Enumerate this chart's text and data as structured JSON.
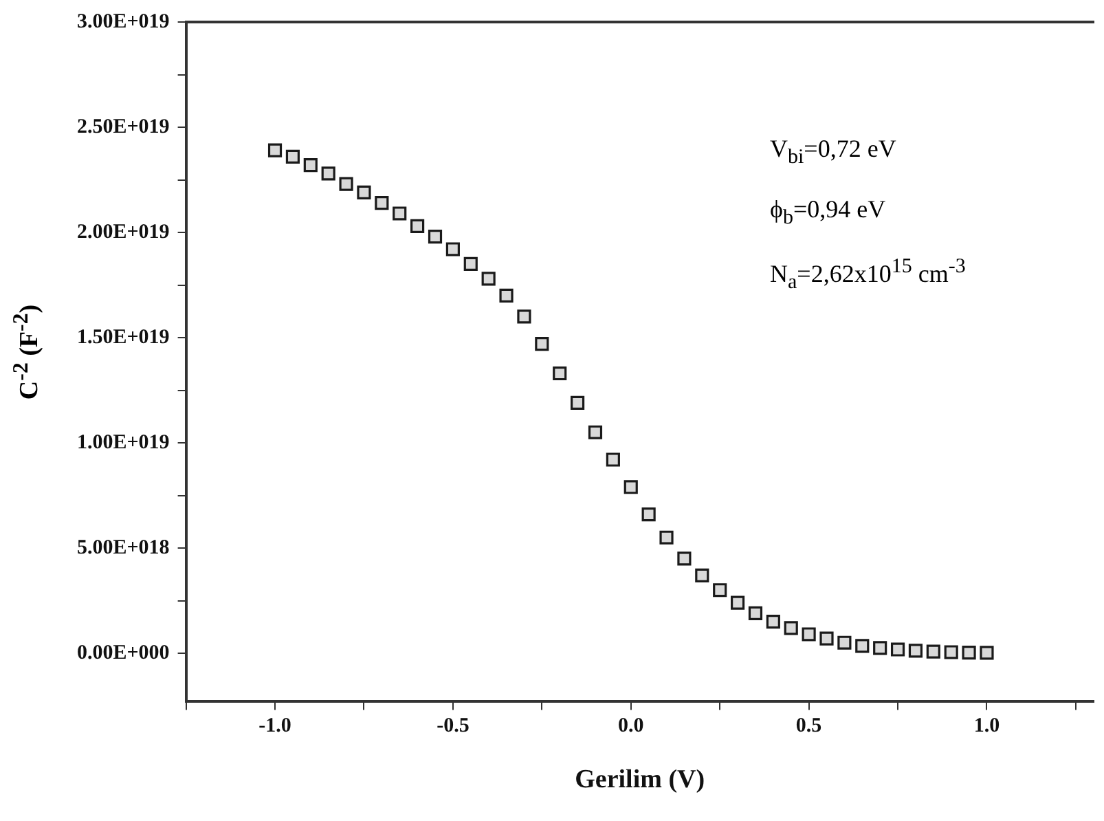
{
  "chart_data": {
    "type": "scatter",
    "xlabel": "Gerilim (V)",
    "ylabel": "C$^{-2}$ (F$^{-2}$)",
    "annotations": [
      "V$_{bi}$=0,72 eV",
      "ϕ$_{b}$=0,94 eV",
      "N$_{a}$=2,62x10$^{15}$ cm$^{-3}$"
    ],
    "x": [
      -1.0,
      -0.95,
      -0.9,
      -0.85,
      -0.8,
      -0.75,
      -0.7,
      -0.65,
      -0.6,
      -0.55,
      -0.5,
      -0.45,
      -0.4,
      -0.35,
      -0.3,
      -0.25,
      -0.2,
      -0.15,
      -0.1,
      -0.05,
      0.0,
      0.05,
      0.1,
      0.15,
      0.2,
      0.25,
      0.3,
      0.35,
      0.4,
      0.45,
      0.5,
      0.55,
      0.6,
      0.65,
      0.7,
      0.75,
      0.8,
      0.85,
      0.9,
      0.95,
      1.0
    ],
    "series": [
      {
        "color": "#1a1a1a",
        "values": [
          2.39e+19,
          2.36e+19,
          2.32e+19,
          2.28e+19,
          2.23e+19,
          2.19e+19,
          2.14e+19,
          2.09e+19,
          2.03e+19,
          1.98e+19,
          1.92e+19,
          1.85e+19,
          1.78e+19,
          1.7e+19,
          1.6e+19,
          1.47e+19,
          1.33e+19,
          1.19e+19,
          1.05e+19,
          9.2e+18,
          7.9e+18,
          6.6e+18,
          5.5e+18,
          4.5e+18,
          3.7e+18,
          3e+18,
          2.4e+18,
          1.9e+18,
          1.5e+18,
          1.2e+18,
          9e+17,
          7e+17,
          5e+17,
          3.5e+17,
          2.5e+17,
          1.8e+17,
          1.2e+17,
          8e+16,
          5e+16,
          3e+16,
          2e+16
        ]
      }
    ],
    "marker": "square",
    "grid": false,
    "legend": false,
    "xlim": [
      -1.25,
      1.3
    ],
    "xticks": [
      {
        "value": -1.25,
        "label": null
      },
      {
        "value": -1.0,
        "label": "-1.0"
      },
      {
        "value": -0.75,
        "label": null
      },
      {
        "value": -0.5,
        "label": "-0.5"
      },
      {
        "value": -0.25,
        "label": null
      },
      {
        "value": 0,
        "label": "0.0"
      },
      {
        "value": 0.25,
        "label": null
      },
      {
        "value": 0.5,
        "label": "0.5"
      },
      {
        "value": 0.75,
        "label": null
      },
      {
        "value": 1.0,
        "label": "1.0"
      },
      {
        "value": 1.25,
        "label": null
      }
    ],
    "ylim": [
      -2.3e+18,
      3e+19
    ],
    "yticks": [
      {
        "value": 0,
        "label": "0.00E+000"
      },
      {
        "value": 2.5e+18,
        "label": null
      },
      {
        "value": 5e+18,
        "label": "5.00E+018"
      },
      {
        "value": 7.5e+18,
        "label": null
      },
      {
        "value": 1e+19,
        "label": "1.00E+019"
      },
      {
        "value": 1.25e+19,
        "label": null
      },
      {
        "value": 1.5e+19,
        "label": "1.50E+019"
      },
      {
        "value": 1.75e+19,
        "label": null
      },
      {
        "value": 2e+19,
        "label": "2.00E+019"
      },
      {
        "value": 2.25e+19,
        "label": null
      },
      {
        "value": 2.5e+19,
        "label": "2.50E+019"
      },
      {
        "value": 2.75e+19,
        "label": null
      },
      {
        "value": 3e+19,
        "label": "3.00E+019"
      }
    ]
  }
}
